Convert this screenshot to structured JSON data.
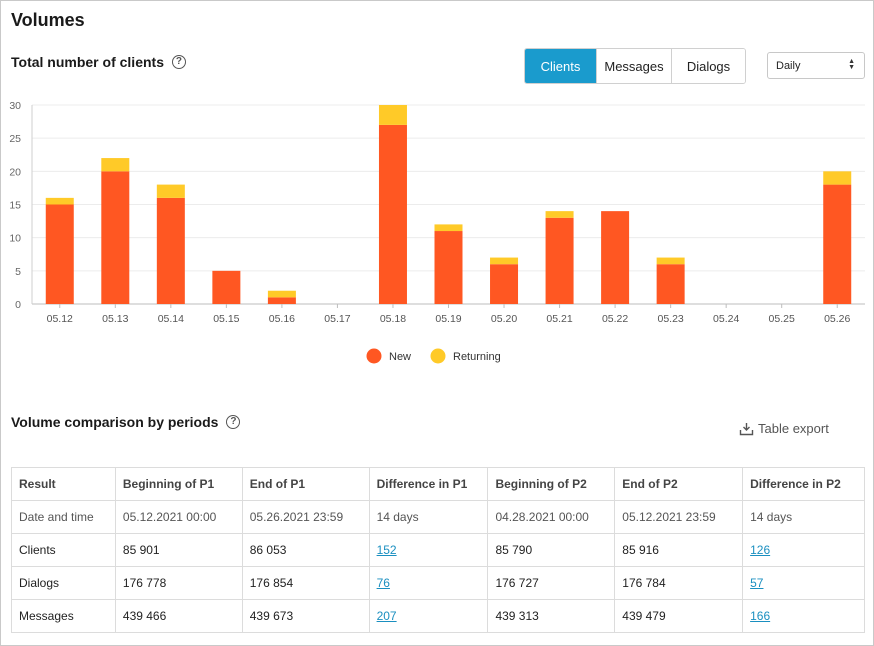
{
  "page": {
    "title": "Volumes"
  },
  "clients_section": {
    "title": "Total number of clients",
    "help_glyph": "?",
    "metric_tabs": [
      {
        "label": "Clients",
        "active": true
      },
      {
        "label": "Messages",
        "active": false
      },
      {
        "label": "Dialogs",
        "active": false
      }
    ],
    "period_select": "Daily"
  },
  "chart_data": {
    "type": "bar",
    "stacked": true,
    "categories": [
      "05.12",
      "05.13",
      "05.14",
      "05.15",
      "05.16",
      "05.17",
      "05.18",
      "05.19",
      "05.20",
      "05.21",
      "05.22",
      "05.23",
      "05.24",
      "05.25",
      "05.26"
    ],
    "series": [
      {
        "name": "New",
        "color": "#ff5722",
        "values": [
          15,
          20,
          16,
          5,
          1,
          0,
          27,
          11,
          6,
          13,
          14,
          6,
          0,
          0,
          18
        ]
      },
      {
        "name": "Returning",
        "color": "#ffca28",
        "values": [
          1,
          2,
          2,
          0,
          1,
          0,
          3,
          1,
          1,
          1,
          0,
          1,
          0,
          0,
          2
        ]
      }
    ],
    "ylim": [
      0,
      30
    ],
    "yticks": [
      0,
      5,
      10,
      15,
      20,
      25,
      30
    ],
    "grid": true,
    "legend": "bottom-center",
    "title": "",
    "xlabel": "",
    "ylabel": ""
  },
  "comparison_section": {
    "title": "Volume comparison by periods",
    "help_glyph": "?",
    "export_label": "Table export",
    "export_icon": "download-tray-icon",
    "headers": [
      "Result",
      "Beginning of P1",
      "End of P1",
      "Difference in P1",
      "Beginning of P2",
      "End of P2",
      "Difference in P2"
    ],
    "rows": [
      {
        "cells": [
          "Date and time",
          "05.12.2021 00:00",
          "05.26.2021 23:59",
          "14 days",
          "04.28.2021 00:00",
          "05.12.2021 23:59",
          "14 days"
        ]
      },
      {
        "cells": [
          "Clients",
          "85 901",
          "86 053",
          "152",
          "85 790",
          "85 916",
          "126"
        ]
      },
      {
        "cells": [
          "Dialogs",
          "176 778",
          "176 854",
          "76",
          "176 727",
          "176 784",
          "57"
        ]
      },
      {
        "cells": [
          "Messages",
          "439 466",
          "439 673",
          "207",
          "439 313",
          "439 479",
          "166"
        ]
      }
    ]
  }
}
